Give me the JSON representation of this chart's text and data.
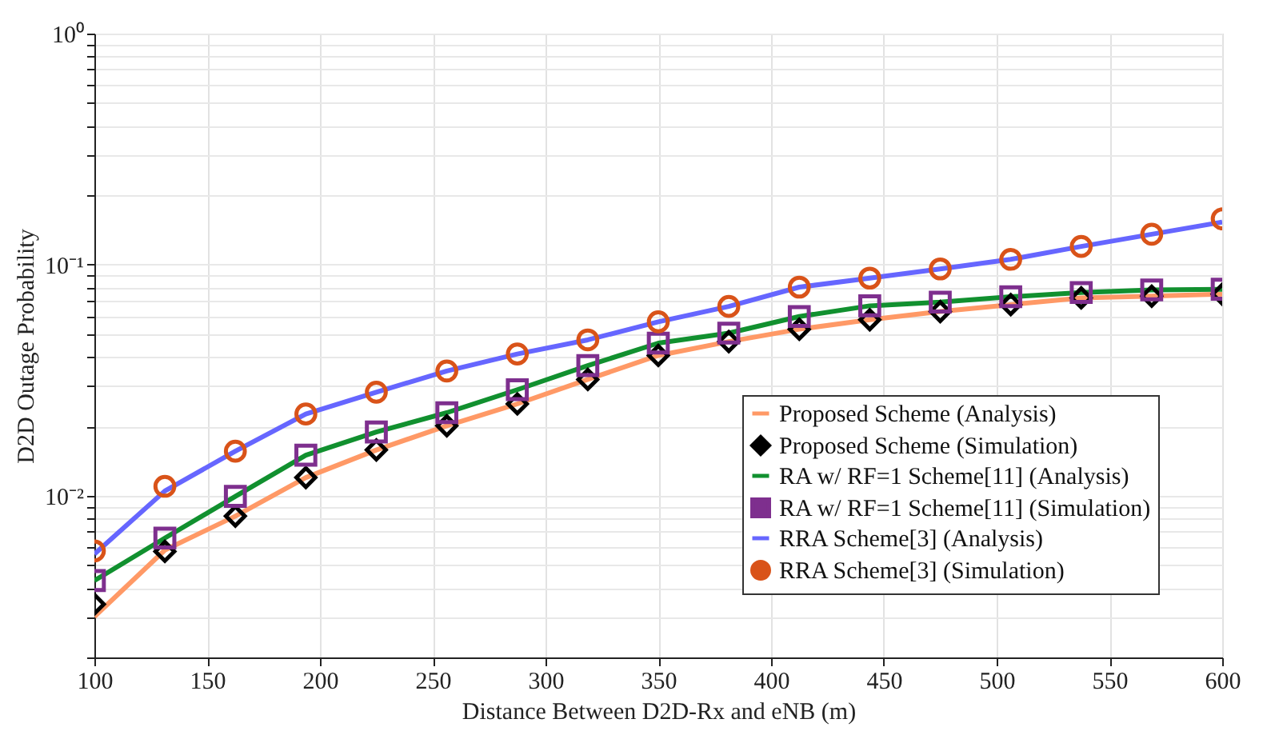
{
  "chart_data": {
    "type": "line",
    "xlabel": "Distance Between D2D-Rx and eNB (m)",
    "ylabel": "D2D Outage Probability",
    "x": [
      100,
      131.25,
      162.5,
      193.75,
      225,
      256.25,
      287.5,
      318.75,
      350,
      381.25,
      412.5,
      443.75,
      475,
      506.25,
      537.5,
      568.75,
      600
    ],
    "series": [
      {
        "name": "Proposed Scheme (Analysis)",
        "marker": "none",
        "color": "#ff9966",
        "values": [
          0.003,
          0.00583,
          0.00817,
          0.012,
          0.0158,
          0.0201,
          0.025,
          0.0319,
          0.0405,
          0.0465,
          0.0526,
          0.0578,
          0.0627,
          0.0672,
          0.0719,
          0.0731,
          0.0746
        ]
      },
      {
        "name": "Proposed Scheme (Simulation)",
        "type": "scatter",
        "marker": "diamond",
        "color": "#000000",
        "values": [
          0.0034,
          0.00575,
          0.00817,
          0.012,
          0.0158,
          0.0201,
          0.025,
          0.0319,
          0.0405,
          0.0465,
          0.0526,
          0.0578,
          0.0627,
          0.0672,
          0.0719,
          0.0731,
          0.0746
        ]
      },
      {
        "name": "RA w/ RF=1 Scheme[11] (Analysis)",
        "marker": "none",
        "color": "#11902f",
        "values": [
          0.0043,
          0.00657,
          0.00995,
          0.015,
          0.0189,
          0.0229,
          0.0288,
          0.0366,
          0.0458,
          0.0506,
          0.0597,
          0.0664,
          0.0689,
          0.0727,
          0.0758,
          0.0778,
          0.0783
        ]
      },
      {
        "name": "RA w/ RF=1 Scheme[11] (Simulation)",
        "type": "scatter",
        "marker": "square",
        "color": "#7e2f8e",
        "values": [
          0.0043,
          0.00657,
          0.00995,
          0.015,
          0.0189,
          0.0229,
          0.0288,
          0.0366,
          0.0458,
          0.0506,
          0.0597,
          0.0664,
          0.0689,
          0.0727,
          0.0758,
          0.0778,
          0.0783
        ]
      },
      {
        "name": "RRA Scheme[3] (Analysis)",
        "marker": "none",
        "color": "#6666ff",
        "values": [
          0.0056,
          0.0105,
          0.0156,
          0.0226,
          0.0281,
          0.0347,
          0.0411,
          0.0473,
          0.0566,
          0.066,
          0.08,
          0.0875,
          0.0959,
          0.1055,
          0.12,
          0.1355,
          0.153
        ]
      },
      {
        "name": "RRA Scheme[3] (Simulation)",
        "type": "scatter",
        "marker": "circle",
        "color": "#d95319",
        "values": [
          0.00578,
          0.011,
          0.0156,
          0.0226,
          0.0281,
          0.0347,
          0.0411,
          0.0473,
          0.0566,
          0.066,
          0.08,
          0.0875,
          0.0959,
          0.1055,
          0.12,
          0.1355,
          0.158
        ]
      }
    ],
    "xlim": [
      100,
      600
    ],
    "xticks": [
      100,
      150,
      200,
      250,
      300,
      350,
      400,
      450,
      500,
      550,
      600
    ],
    "ylim": [
      0.002,
      1
    ],
    "log": "y",
    "yticks": [
      {
        "value": 0.002,
        "label": null
      },
      {
        "value": 0.003,
        "label": null
      },
      {
        "value": 0.004,
        "label": null
      },
      {
        "value": 0.005,
        "label": null
      },
      {
        "value": 0.006,
        "label": null
      },
      {
        "value": 0.007,
        "label": null
      },
      {
        "value": 0.008,
        "label": null
      },
      {
        "value": 0.009,
        "label": null
      },
      {
        "value": 0.01,
        "label": "10⁻²"
      },
      {
        "value": 0.02,
        "label": null
      },
      {
        "value": 0.03,
        "label": null
      },
      {
        "value": 0.04,
        "label": null
      },
      {
        "value": 0.05,
        "label": null
      },
      {
        "value": 0.06,
        "label": null
      },
      {
        "value": 0.07,
        "label": null
      },
      {
        "value": 0.08,
        "label": null
      },
      {
        "value": 0.09,
        "label": null
      },
      {
        "value": 0.1,
        "label": "10⁻¹"
      },
      {
        "value": 0.2,
        "label": null
      },
      {
        "value": 0.3,
        "label": null
      },
      {
        "value": 0.4,
        "label": null
      },
      {
        "value": 0.5,
        "label": null
      },
      {
        "value": 0.6,
        "label": null
      },
      {
        "value": 0.7,
        "label": null
      },
      {
        "value": 0.8,
        "label": null
      },
      {
        "value": 0.9,
        "label": null
      },
      {
        "value": 1,
        "label": "10⁰"
      }
    ],
    "grid": true,
    "legend": "bottom right"
  }
}
